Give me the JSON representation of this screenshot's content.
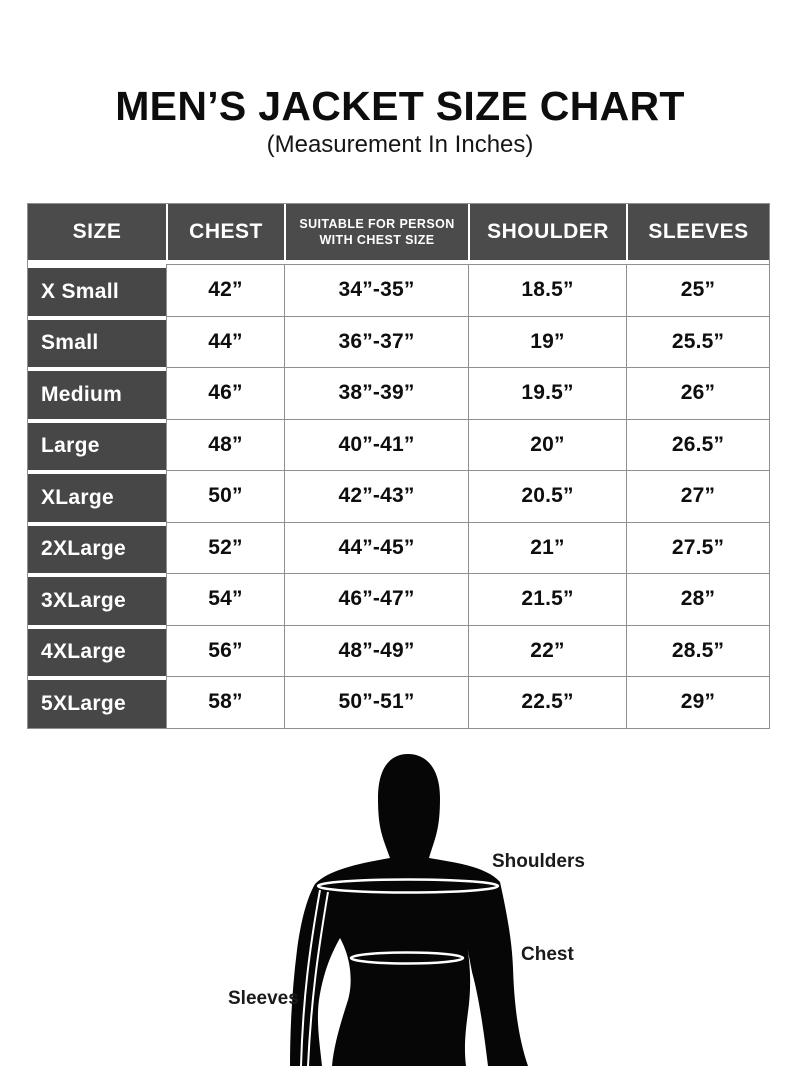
{
  "page": {
    "title": "MEN’S JACKET SIZE CHART",
    "subtitle": "(Measurement In Inches)"
  },
  "colors": {
    "header_bg": "#4b4b4b",
    "size_col_bg": "#474747",
    "border": "#8f8f8f",
    "text": "#111111",
    "silhouette": "#060606"
  },
  "table": {
    "headers": [
      {
        "label": "SIZE"
      },
      {
        "label": "CHEST"
      },
      {
        "label": "SUITABLE FOR PERSON",
        "label2": "WITH CHEST SIZE",
        "small": true
      },
      {
        "label": "SHOULDER"
      },
      {
        "label": "SLEEVES"
      }
    ]
  },
  "chart_data": {
    "type": "table",
    "title": "MEN’S JACKET SIZE CHART",
    "subtitle": "(Measurement In Inches)",
    "units": "inches",
    "columns": [
      "SIZE",
      "CHEST",
      "SUITABLE FOR PERSON WITH CHEST SIZE",
      "SHOULDER",
      "SLEEVES"
    ],
    "rows": [
      [
        "X Small",
        "42”",
        "34”-35”",
        "18.5”",
        "25”"
      ],
      [
        "Small",
        "44”",
        "36”-37”",
        "19”",
        "25.5”"
      ],
      [
        "Medium",
        "46”",
        "38”-39”",
        "19.5”",
        "26”"
      ],
      [
        "Large",
        "48”",
        "40”-41”",
        "20”",
        "26.5”"
      ],
      [
        "XLarge",
        "50”",
        "42”-43”",
        "20.5”",
        "27”"
      ],
      [
        "2XLarge",
        "52”",
        "44”-45”",
        "21”",
        "27.5”"
      ],
      [
        "3XLarge",
        "54”",
        "46”-47”",
        "21.5”",
        "28”"
      ],
      [
        "4XLarge",
        "56”",
        "48”-49”",
        "22”",
        "28.5”"
      ],
      [
        "5XLarge",
        "58”",
        "50”-51”",
        "22.5”",
        "29”"
      ]
    ]
  },
  "figure": {
    "labels": {
      "shoulders": "Shoulders",
      "chest": "Chest",
      "sleeves": "Sleeves"
    }
  }
}
